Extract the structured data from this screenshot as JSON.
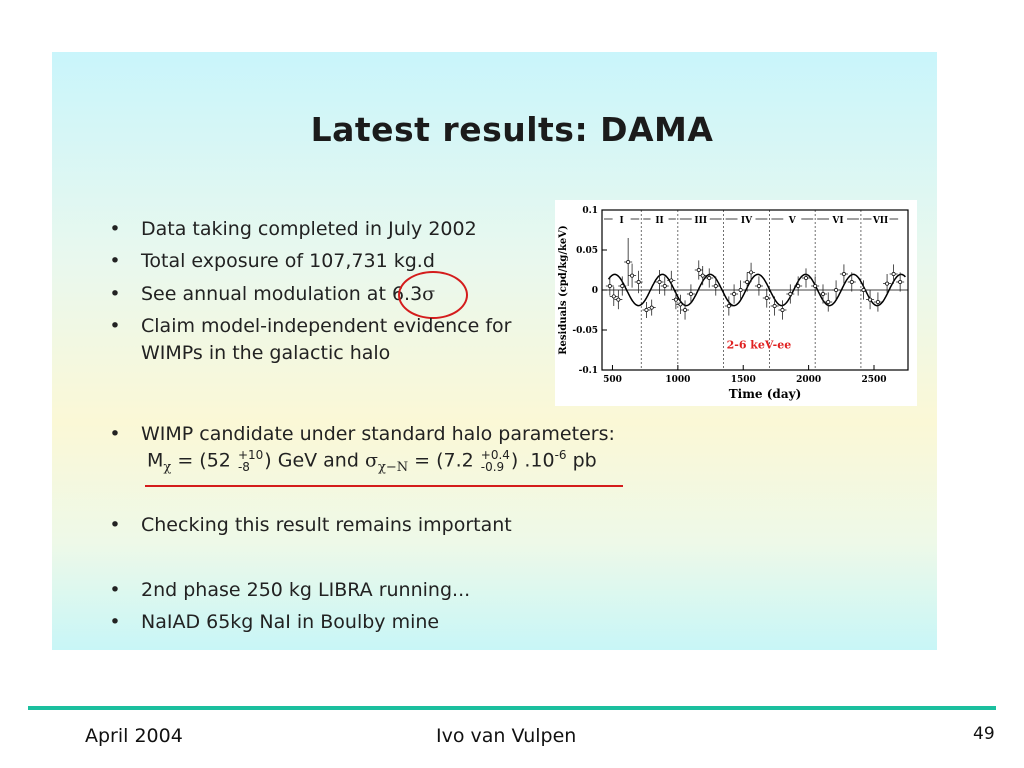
{
  "slide": {
    "title": "Latest results: DAMA",
    "bullet_char": "•",
    "bullets": [
      {
        "text": "Data taking completed in July 2002"
      },
      {
        "text": "Total exposure of 107,731 kg.d"
      },
      {
        "text_before": "See annual modulation at ",
        "highlight": "6.3",
        "sigma": "σ"
      },
      {
        "line1": "Claim model-independent evidence for",
        "line2": "WIMPs in the galactic halo"
      },
      {
        "text": "WIMP candidate under standard halo parameters:"
      },
      {
        "text": "Checking this result remains important"
      },
      {
        "text": "2nd phase 250 kg LIBRA running..."
      },
      {
        "text": "NaIAD 65kg NaI in Boulby mine"
      }
    ],
    "formula": {
      "m": "M",
      "chi": "χ",
      "eq1": " = (52 ",
      "m_up": "+10",
      "m_down": "-8",
      "unit1": ") GeV and ",
      "sigma": "σ",
      "sigma_sub": "χ−N",
      "eq2": " = (7.2 ",
      "s_up": "+0.4",
      "s_down": "-0.9",
      "unit2_pre": ") .10",
      "exp": "-6",
      "unit2_post": " pb"
    },
    "accent_color": "#d41c1c"
  },
  "chart_data": {
    "type": "scatter",
    "title": "",
    "xlabel": "Time (day)",
    "ylabel": "Residuals (cpd/kg/keV)",
    "xlim": [
      420,
      2760
    ],
    "ylim": [
      -0.1,
      0.1
    ],
    "xticks": [
      500,
      1000,
      1500,
      2000,
      2500
    ],
    "yticks": [
      {
        "value": 0.1,
        "label": "0.1"
      },
      {
        "value": 0.05,
        "label": "0.05"
      },
      {
        "value": 0,
        "label": "0"
      },
      {
        "value": -0.05,
        "label": "-0.05"
      },
      {
        "value": -0.1,
        "label": "-0.1"
      }
    ],
    "annotation": "2-6 keV-ee",
    "annotation_color": "#e02020",
    "periods": [
      {
        "label": "I",
        "start": 420,
        "end": 720
      },
      {
        "label": "II",
        "start": 720,
        "end": 1000
      },
      {
        "label": "III",
        "start": 1000,
        "end": 1350
      },
      {
        "label": "IV",
        "start": 1350,
        "end": 1700
      },
      {
        "label": "V",
        "start": 1700,
        "end": 2050
      },
      {
        "label": "VI",
        "start": 2050,
        "end": 2400
      },
      {
        "label": "VII",
        "start": 2400,
        "end": 2700
      }
    ],
    "model": {
      "amplitude": 0.0195,
      "period_days": 365,
      "phase_day": 152,
      "x_start": 470,
      "x_end": 2740
    },
    "points": [
      {
        "x": 480,
        "y": 0.005,
        "err": 0.012
      },
      {
        "x": 510,
        "y": -0.008,
        "err": 0.012
      },
      {
        "x": 545,
        "y": -0.012,
        "err": 0.012
      },
      {
        "x": 575,
        "y": 0.005,
        "err": 0.012
      },
      {
        "x": 620,
        "y": 0.035,
        "err": 0.03
      },
      {
        "x": 650,
        "y": 0.018,
        "err": 0.015
      },
      {
        "x": 700,
        "y": 0.01,
        "err": 0.014
      },
      {
        "x": 760,
        "y": -0.025,
        "err": 0.01
      },
      {
        "x": 800,
        "y": -0.022,
        "err": 0.01
      },
      {
        "x": 860,
        "y": 0.01,
        "err": 0.015
      },
      {
        "x": 900,
        "y": 0.005,
        "err": 0.012
      },
      {
        "x": 950,
        "y": 0.012,
        "err": 0.012
      },
      {
        "x": 985,
        "y": -0.012,
        "err": 0.012
      },
      {
        "x": 1020,
        "y": -0.018,
        "err": 0.012
      },
      {
        "x": 1055,
        "y": -0.025,
        "err": 0.012
      },
      {
        "x": 1100,
        "y": -0.005,
        "err": 0.012
      },
      {
        "x": 1160,
        "y": 0.025,
        "err": 0.012
      },
      {
        "x": 1190,
        "y": 0.018,
        "err": 0.012
      },
      {
        "x": 1240,
        "y": 0.015,
        "err": 0.012
      },
      {
        "x": 1290,
        "y": 0.005,
        "err": 0.012
      },
      {
        "x": 1390,
        "y": -0.02,
        "err": 0.012
      },
      {
        "x": 1430,
        "y": -0.005,
        "err": 0.012
      },
      {
        "x": 1480,
        "y": 0.0,
        "err": 0.012
      },
      {
        "x": 1530,
        "y": 0.01,
        "err": 0.012
      },
      {
        "x": 1560,
        "y": 0.022,
        "err": 0.012
      },
      {
        "x": 1620,
        "y": 0.005,
        "err": 0.012
      },
      {
        "x": 1680,
        "y": -0.01,
        "err": 0.012
      },
      {
        "x": 1740,
        "y": -0.02,
        "err": 0.012
      },
      {
        "x": 1800,
        "y": -0.025,
        "err": 0.012
      },
      {
        "x": 1860,
        "y": -0.005,
        "err": 0.012
      },
      {
        "x": 1920,
        "y": 0.005,
        "err": 0.012
      },
      {
        "x": 1980,
        "y": 0.015,
        "err": 0.012
      },
      {
        "x": 2050,
        "y": 0.005,
        "err": 0.012
      },
      {
        "x": 2110,
        "y": -0.005,
        "err": 0.012
      },
      {
        "x": 2150,
        "y": -0.015,
        "err": 0.012
      },
      {
        "x": 2210,
        "y": 0.0,
        "err": 0.012
      },
      {
        "x": 2270,
        "y": 0.02,
        "err": 0.012
      },
      {
        "x": 2330,
        "y": 0.01,
        "err": 0.012
      },
      {
        "x": 2420,
        "y": 0.0,
        "err": 0.012
      },
      {
        "x": 2470,
        "y": -0.012,
        "err": 0.012
      },
      {
        "x": 2530,
        "y": -0.015,
        "err": 0.012
      },
      {
        "x": 2600,
        "y": 0.008,
        "err": 0.012
      },
      {
        "x": 2650,
        "y": 0.02,
        "err": 0.012
      },
      {
        "x": 2700,
        "y": 0.01,
        "err": 0.012
      }
    ]
  },
  "footer": {
    "date": "April 2004",
    "author": "Ivo van Vulpen",
    "page": "49"
  }
}
